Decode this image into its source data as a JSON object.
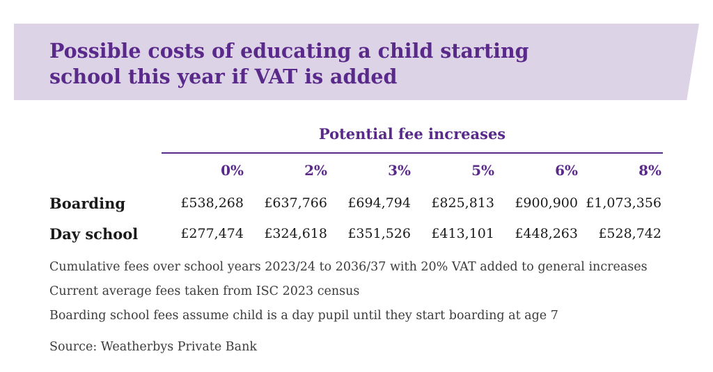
{
  "title": {
    "line1": "Possible costs of educating a child starting",
    "line2": "school this year if VAT is added"
  },
  "table": {
    "group_header": "Potential fee increases",
    "columns": [
      "0%",
      "2%",
      "3%",
      "5%",
      "6%",
      "8%"
    ],
    "rows": [
      {
        "label": "Boarding",
        "values": [
          "£538,268",
          "£637,766",
          "£694,794",
          "£825,813",
          "£900,900",
          "£1,073,356"
        ]
      },
      {
        "label": "Day school",
        "values": [
          "£277,474",
          "£324,618",
          "£351,526",
          "£413,101",
          "£448,263",
          "£528,742"
        ]
      }
    ]
  },
  "notes": [
    "Cumulative fees over school years 2023/24 to 2036/37 with 20% VAT added to general increases",
    "Current average fees taken from ISC 2023 census",
    "Boarding school fees assume child is a day pupil until they start boarding at age 7"
  ],
  "source": "Source: Weatherbys Private Bank",
  "colors": {
    "accent": "#5a2a8a",
    "banner": "#ddd3e6",
    "text": "#1a1a1a"
  }
}
